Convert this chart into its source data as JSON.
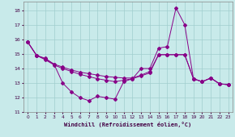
{
  "xlabel": "Windchill (Refroidissement éolien,°C)",
  "background_color": "#c8eaea",
  "grid_color": "#a0cece",
  "line_color": "#880088",
  "xlim": [
    -0.5,
    23.5
  ],
  "ylim": [
    11,
    18.6
  ],
  "yticks": [
    11,
    12,
    13,
    14,
    15,
    16,
    17,
    18
  ],
  "xticks": [
    0,
    1,
    2,
    3,
    4,
    5,
    6,
    7,
    8,
    9,
    10,
    11,
    12,
    13,
    14,
    15,
    16,
    17,
    18,
    19,
    20,
    21,
    22,
    23
  ],
  "line1_x": [
    0,
    1,
    2,
    3,
    4,
    5,
    6,
    7,
    8,
    9,
    10,
    11,
    12,
    13,
    14,
    15,
    16,
    17,
    18,
    19,
    20,
    21,
    22,
    23
  ],
  "line1_y": [
    15.8,
    14.9,
    14.7,
    14.3,
    13.0,
    12.4,
    12.0,
    11.8,
    12.1,
    12.0,
    11.9,
    13.1,
    13.3,
    14.0,
    14.0,
    15.4,
    15.5,
    18.15,
    17.0,
    13.3,
    13.1,
    13.35,
    12.95,
    12.9
  ],
  "line2_x": [
    0,
    1,
    2,
    3,
    4,
    5,
    6,
    7,
    8,
    9,
    10,
    11,
    12,
    13,
    14,
    15,
    16,
    17,
    18,
    19,
    20,
    21,
    22,
    23
  ],
  "line2_y": [
    15.8,
    14.9,
    14.65,
    14.3,
    14.1,
    13.9,
    13.75,
    13.65,
    13.55,
    13.45,
    13.4,
    13.35,
    13.35,
    13.55,
    13.8,
    14.95,
    14.95,
    14.95,
    14.95,
    13.3,
    13.1,
    13.35,
    12.95,
    12.9
  ],
  "line3_x": [
    0,
    1,
    2,
    3,
    4,
    5,
    6,
    7,
    8,
    9,
    10,
    11,
    12,
    13,
    14,
    15,
    16,
    17,
    18,
    19,
    20,
    21,
    22,
    23
  ],
  "line3_y": [
    15.8,
    14.9,
    14.6,
    14.25,
    14.0,
    13.8,
    13.6,
    13.45,
    13.3,
    13.2,
    13.1,
    13.2,
    13.3,
    13.5,
    13.7,
    14.95,
    14.95,
    14.95,
    14.95,
    13.3,
    13.1,
    13.35,
    12.95,
    12.9
  ]
}
